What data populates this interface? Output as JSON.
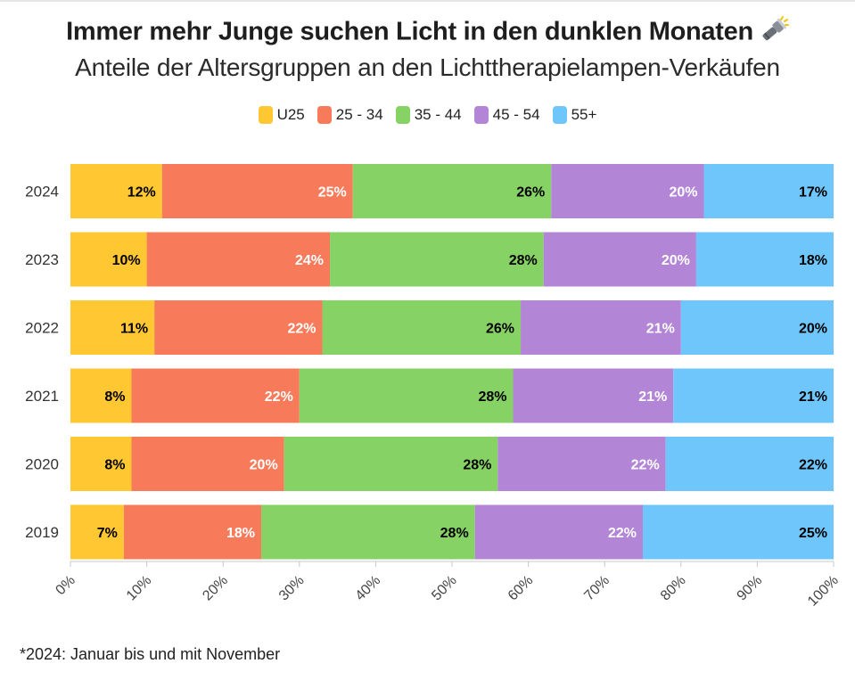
{
  "title": "Immer mehr Junge suchen Licht in den dunklen Monaten",
  "title_icon": "flashlight-icon",
  "subtitle": "Anteile der Altersgruppen an den Lichttherapielampen-Verkäufen",
  "footnote": "*2024: Januar bis und mit November",
  "chart_data": {
    "type": "bar",
    "orientation": "horizontal",
    "stacked": true,
    "categories": [
      "2024",
      "2023",
      "2022",
      "2021",
      "2020",
      "2019"
    ],
    "series": [
      {
        "name": "U25",
        "color": "#FFC832",
        "label_color": "#000000",
        "values": [
          12,
          10,
          11,
          8,
          8,
          7
        ]
      },
      {
        "name": "25 - 34",
        "color": "#F77B5A",
        "label_color": "#ffffff",
        "values": [
          25,
          24,
          22,
          22,
          20,
          18
        ]
      },
      {
        "name": "35 - 44",
        "color": "#86D265",
        "label_color": "#000000",
        "values": [
          26,
          28,
          26,
          28,
          28,
          28
        ]
      },
      {
        "name": "45 - 54",
        "color": "#B385D6",
        "label_color": "#ffffff",
        "values": [
          20,
          20,
          21,
          21,
          22,
          22
        ]
      },
      {
        "name": "55+",
        "color": "#6EC6FB",
        "label_color": "#000000",
        "values": [
          17,
          18,
          20,
          21,
          22,
          25
        ]
      }
    ],
    "xlim": [
      0,
      100
    ],
    "x_ticks": [
      "0%",
      "10%",
      "20%",
      "30%",
      "40%",
      "50%",
      "60%",
      "70%",
      "80%",
      "90%",
      "100%"
    ],
    "value_suffix": "%",
    "legend_position": "top-center",
    "grid": false
  }
}
